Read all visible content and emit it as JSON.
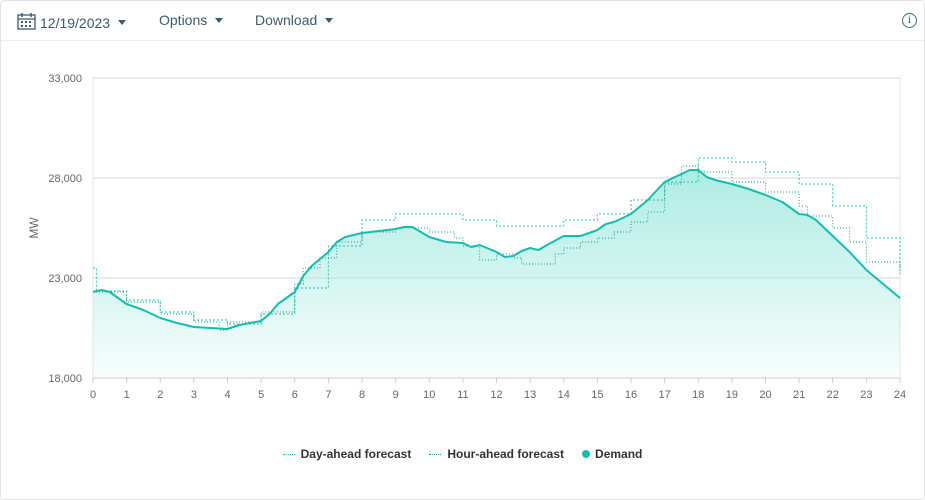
{
  "toolbar": {
    "date": "12/19/2023",
    "options_label": "Options",
    "download_label": "Download",
    "info_glyph": "i"
  },
  "chart_data": {
    "type": "area",
    "ylabel": "MW",
    "xlabel": "",
    "ylim": [
      18000,
      33000
    ],
    "xlim": [
      0,
      24
    ],
    "y_ticks": [
      "18,000",
      "23,000",
      "28,000",
      "33,000"
    ],
    "x_ticks": [
      "0",
      "1",
      "2",
      "3",
      "4",
      "5",
      "6",
      "7",
      "8",
      "9",
      "10",
      "11",
      "12",
      "13",
      "14",
      "15",
      "16",
      "17",
      "18",
      "19",
      "20",
      "21",
      "22",
      "23",
      "24"
    ],
    "grid": "horizontal",
    "legend_position": "bottom-center",
    "colors": {
      "demand": "#14bdb0",
      "fill": "#a8ebe1",
      "day_ahead": "#21c7b3",
      "hour_ahead": "#1a9c8e"
    },
    "series": [
      {
        "name": "Demand",
        "style": "area",
        "x": [
          0,
          0.25,
          0.5,
          1,
          1.5,
          2,
          2.5,
          3,
          3.5,
          4,
          4.25,
          4.5,
          5,
          5.25,
          5.5,
          6,
          6.25,
          6.5,
          7,
          7.25,
          7.5,
          8,
          8.5,
          9,
          9.25,
          9.5,
          10,
          10.5,
          11,
          11.25,
          11.5,
          12,
          12.25,
          12.5,
          12.75,
          13,
          13.25,
          13.5,
          14,
          14.5,
          15,
          15.25,
          15.5,
          16,
          16.5,
          17,
          17.5,
          17.75,
          18,
          18.25,
          18.5,
          19,
          19.5,
          20,
          20.5,
          20.75,
          21,
          21.25,
          21.5,
          22,
          22.5,
          23,
          23.5,
          24
        ],
        "values": [
          22300,
          22400,
          22300,
          21700,
          21400,
          21000,
          20750,
          20550,
          20500,
          20450,
          20600,
          20700,
          20850,
          21200,
          21700,
          22300,
          23100,
          23600,
          24300,
          24800,
          25050,
          25250,
          25350,
          25450,
          25550,
          25550,
          25050,
          24800,
          24750,
          24550,
          24650,
          24300,
          24050,
          24100,
          24350,
          24500,
          24400,
          24650,
          25100,
          25100,
          25400,
          25700,
          25800,
          26200,
          26900,
          27800,
          28200,
          28400,
          28400,
          28050,
          27900,
          27700,
          27450,
          27150,
          26800,
          26500,
          26200,
          26150,
          25900,
          25100,
          24300,
          23400,
          22700,
          22000
        ]
      },
      {
        "name": "Day-ahead forecast",
        "style": "dotted-step",
        "x": [
          0,
          0.1,
          1,
          2,
          3,
          4,
          5,
          6,
          7,
          8,
          9,
          10,
          11,
          12,
          13,
          14,
          15,
          16,
          17,
          18,
          19,
          20,
          21,
          22,
          23,
          24
        ],
        "values": [
          23500,
          22350,
          21900,
          21300,
          20900,
          20700,
          21200,
          22500,
          24600,
          25900,
          26200,
          26200,
          25900,
          25600,
          25600,
          25900,
          26200,
          26900,
          27800,
          29000,
          28800,
          28300,
          27700,
          26600,
          25000,
          23400
        ]
      },
      {
        "name": "Hour-ahead forecast",
        "style": "dotted-step",
        "x": [
          0,
          0.25,
          1,
          2,
          3,
          3.75,
          4,
          5,
          6,
          6.25,
          6.75,
          7.25,
          8,
          9,
          10,
          10.75,
          11,
          11.5,
          12,
          12.5,
          12.75,
          13.25,
          13.75,
          14,
          14.5,
          15,
          15.5,
          16,
          16.5,
          17,
          17.5,
          18,
          19,
          20,
          21,
          21.25,
          22,
          22.5,
          23,
          24
        ],
        "values": [
          22300,
          22300,
          21800,
          21200,
          20800,
          20400,
          20800,
          21300,
          22700,
          23500,
          24000,
          24800,
          25300,
          25500,
          25300,
          25000,
          24600,
          23900,
          24200,
          24000,
          23700,
          23700,
          24200,
          24500,
          24800,
          25000,
          25300,
          25800,
          26300,
          27700,
          28600,
          28300,
          27800,
          27300,
          26600,
          26100,
          25500,
          24800,
          23800,
          23200
        ]
      }
    ]
  }
}
